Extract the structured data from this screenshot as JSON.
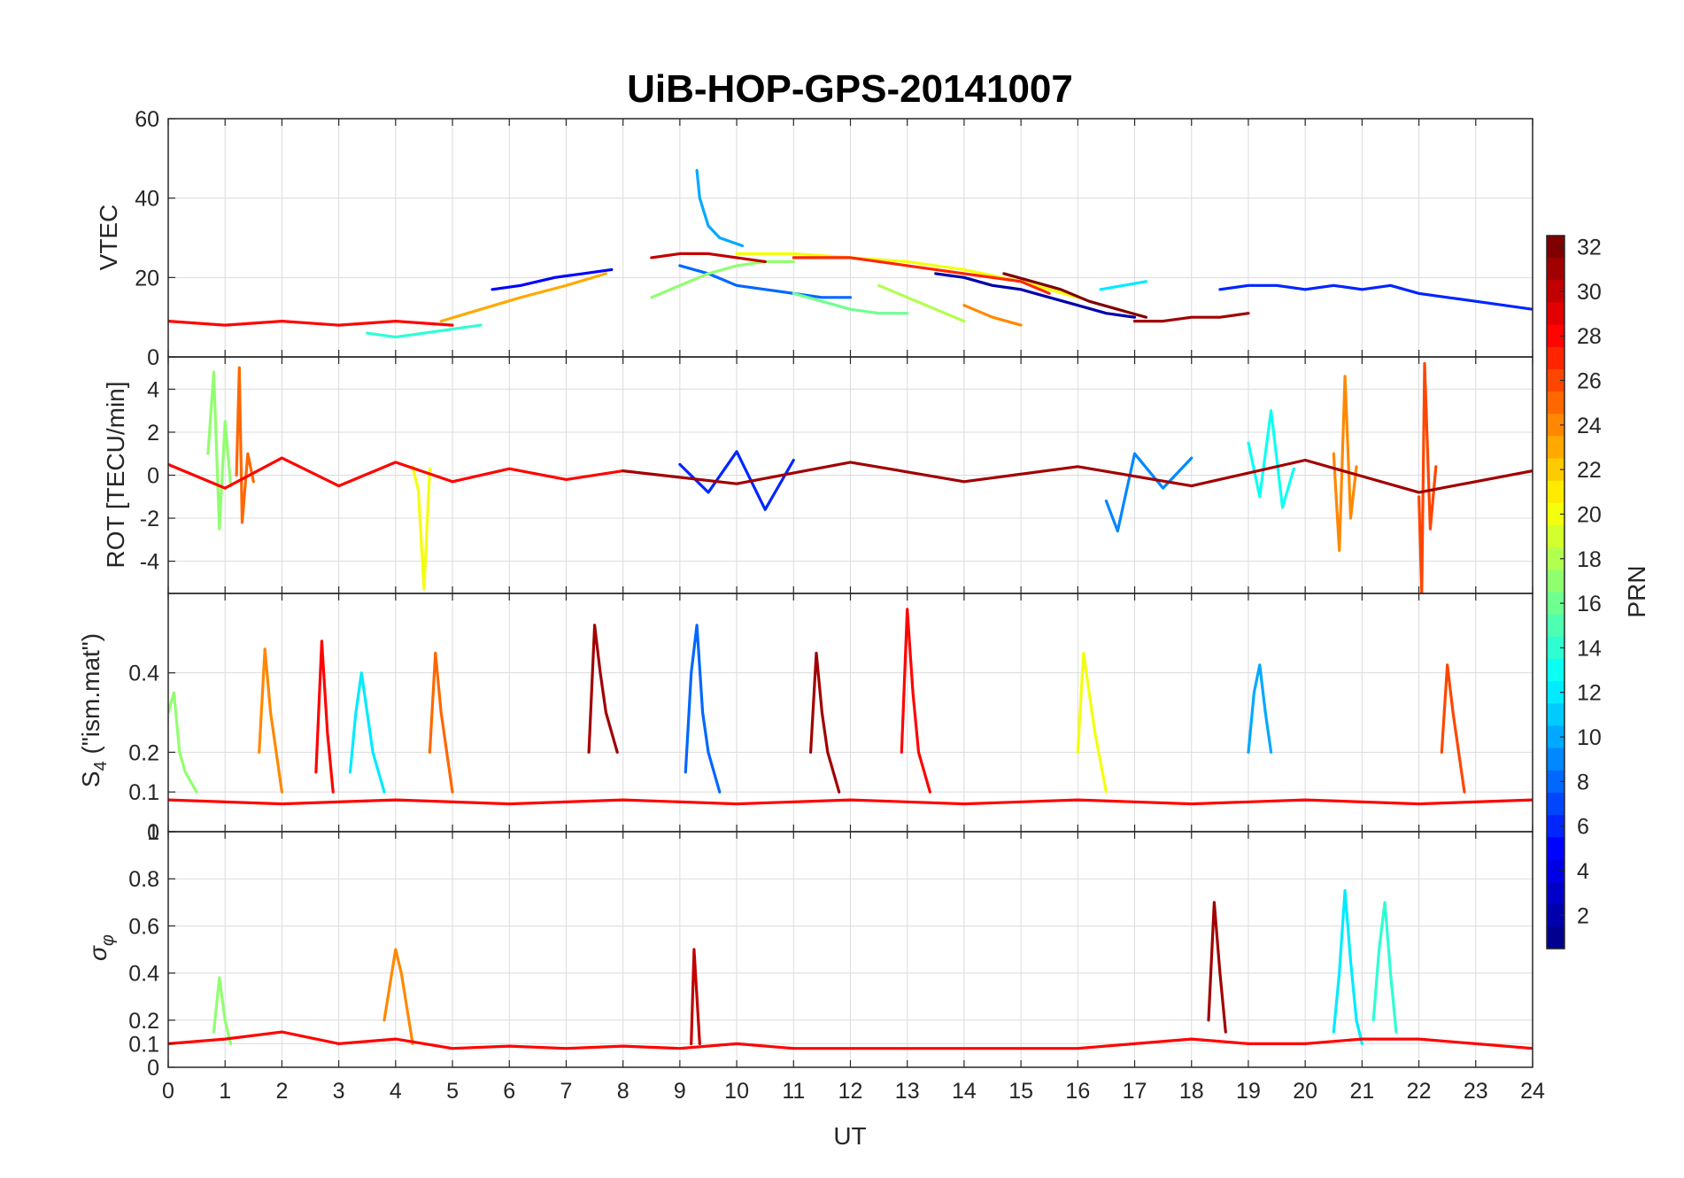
{
  "figure_title": "UiB-HOP-GPS-20141007",
  "colorbar": {
    "label": "PRN",
    "ticks": [
      "2",
      "4",
      "6",
      "8",
      "10",
      "12",
      "14",
      "16",
      "18",
      "20",
      "22",
      "24",
      "26",
      "28",
      "30",
      "32"
    ],
    "range": [
      1,
      32
    ],
    "colormap": [
      "#00008f",
      "#0000ff",
      "#0080ff",
      "#00ffff",
      "#80ff80",
      "#ffff00",
      "#ff8000",
      "#ff0000",
      "#800000"
    ]
  },
  "chart_data": [
    {
      "type": "line",
      "panel": "vtec",
      "ylabel": "VTEC",
      "ylim": [
        0,
        60
      ],
      "yticks": [
        "0",
        "20",
        "40",
        "60"
      ],
      "xlim": [
        0,
        24
      ],
      "grid": true,
      "series": [
        {
          "prn": 2,
          "x": [
            13.5,
            14.0,
            14.5,
            15.0,
            15.5,
            16.0,
            16.5,
            17.0
          ],
          "y": [
            21,
            20,
            18,
            17,
            15,
            13,
            11,
            10
          ]
        },
        {
          "prn": 5,
          "x": [
            5.7,
            6.2,
            6.8,
            7.3,
            7.8
          ],
          "y": [
            17,
            18,
            20,
            21,
            22
          ]
        },
        {
          "prn": 6,
          "x": [
            18.5,
            19.0,
            19.5,
            20.0,
            20.5,
            21.0,
            21.5,
            22.0,
            22.5,
            23.0,
            23.5,
            24.0
          ],
          "y": [
            17,
            18,
            18,
            17,
            18,
            17,
            18,
            16,
            15,
            14,
            13,
            12
          ]
        },
        {
          "prn": 8,
          "x": [
            9.0,
            9.5,
            10.0,
            10.5,
            11.0,
            11.5,
            12.0
          ],
          "y": [
            23,
            21,
            18,
            17,
            16,
            15,
            15
          ]
        },
        {
          "prn": 10,
          "x": [
            9.3,
            9.35,
            9.5,
            9.7,
            9.9,
            10.1
          ],
          "y": [
            47,
            40,
            33,
            30,
            29,
            28
          ]
        },
        {
          "prn": 12,
          "x": [
            16.4,
            16.8,
            17.2
          ],
          "y": [
            17,
            18,
            19
          ]
        },
        {
          "prn": 14,
          "x": [
            3.5,
            4.0,
            4.5,
            5.0,
            5.5
          ],
          "y": [
            6,
            5,
            6,
            7,
            8
          ]
        },
        {
          "prn": 16,
          "x": [
            11.0,
            11.5,
            12.0,
            12.5,
            13.0
          ],
          "y": [
            16,
            14,
            12,
            11,
            11
          ]
        },
        {
          "prn": 17,
          "x": [
            8.5,
            9.0,
            9.5,
            10.0,
            10.5,
            11.0
          ],
          "y": [
            15,
            18,
            21,
            23,
            24,
            24
          ]
        },
        {
          "prn": 18,
          "x": [
            12.5,
            13.0,
            13.5,
            14.0
          ],
          "y": [
            18,
            15,
            12,
            9
          ]
        },
        {
          "prn": 20,
          "x": [
            10.0,
            11.0,
            12.0,
            13.0,
            14.0,
            15.0,
            16.0
          ],
          "y": [
            26,
            26,
            25,
            24,
            22,
            19,
            15
          ]
        },
        {
          "prn": 23,
          "x": [
            4.8,
            5.5,
            6.2,
            7.0,
            7.7
          ],
          "y": [
            9,
            12,
            15,
            18,
            21
          ]
        },
        {
          "prn": 24,
          "x": [
            14.0,
            14.5,
            15.0
          ],
          "y": [
            13,
            10,
            8
          ]
        },
        {
          "prn": 27,
          "x": [
            11.0,
            12.0,
            13.0,
            14.0,
            15.0,
            15.5
          ],
          "y": [
            25,
            25,
            23,
            21,
            19,
            16
          ]
        },
        {
          "prn": 28,
          "x": [
            0.0,
            1.0,
            2.0,
            3.0,
            4.0,
            5.0
          ],
          "y": [
            9,
            8,
            9,
            8,
            9,
            8
          ]
        },
        {
          "prn": 30,
          "x": [
            8.5,
            9.0,
            9.5,
            10.0,
            10.5
          ],
          "y": [
            25,
            26,
            26,
            25,
            24
          ]
        },
        {
          "prn": 31,
          "x": [
            17.0,
            17.5,
            18.0,
            18.5,
            19.0
          ],
          "y": [
            9,
            9,
            10,
            10,
            11
          ]
        },
        {
          "prn": 32,
          "x": [
            14.7,
            15.2,
            15.7,
            16.2,
            16.7,
            17.2
          ],
          "y": [
            21,
            19,
            17,
            14,
            12,
            10
          ]
        }
      ]
    },
    {
      "type": "line",
      "panel": "rot",
      "ylabel": "ROT [TECU/min]",
      "ylim": [
        -5.5,
        5.5
      ],
      "yticks": [
        "-4",
        "-2",
        "0",
        "2",
        "4"
      ],
      "xlim": [
        0,
        24
      ],
      "grid": true,
      "series": [
        {
          "prn": 6,
          "x": [
            9.0,
            9.5,
            10.0,
            10.5,
            11.0
          ],
          "y": [
            0.5,
            -0.8,
            1.1,
            -1.6,
            0.7
          ]
        },
        {
          "prn": 9,
          "x": [
            16.5,
            16.7,
            17.0,
            17.5,
            18.0
          ],
          "y": [
            -1.2,
            -2.6,
            1.0,
            -0.6,
            0.8
          ]
        },
        {
          "prn": 13,
          "x": [
            19.0,
            19.2,
            19.4,
            19.6,
            19.8
          ],
          "y": [
            1.5,
            -1.0,
            3.0,
            -1.5,
            0.3
          ]
        },
        {
          "prn": 17,
          "x": [
            0.7,
            0.8,
            0.9,
            1.0,
            1.1
          ],
          "y": [
            1.0,
            4.8,
            -2.5,
            2.5,
            -0.5
          ]
        },
        {
          "prn": 20,
          "x": [
            4.3,
            4.4,
            4.5,
            4.6
          ],
          "y": [
            0.4,
            -0.7,
            -5.3,
            0.3
          ]
        },
        {
          "prn": 24,
          "x": [
            20.5,
            20.6,
            20.7,
            20.8,
            20.9
          ],
          "y": [
            1.0,
            -3.5,
            4.6,
            -2.0,
            0.4
          ]
        },
        {
          "prn": 25,
          "x": [
            1.2,
            1.25,
            1.3,
            1.4,
            1.5
          ],
          "y": [
            0.0,
            5.0,
            -2.2,
            1.0,
            -0.3
          ]
        },
        {
          "prn": 26,
          "x": [
            22.0,
            22.05,
            22.1,
            22.2,
            22.3
          ],
          "y": [
            -1.0,
            -5.5,
            5.2,
            -2.5,
            0.4
          ]
        },
        {
          "prn": 28,
          "x": [
            0.0,
            1.0,
            2.0,
            3.0,
            4.0,
            5.0,
            6.0,
            7.0,
            8.0
          ],
          "y": [
            0.5,
            -0.6,
            0.8,
            -0.5,
            0.6,
            -0.3,
            0.3,
            -0.2,
            0.2
          ]
        },
        {
          "prn": 31,
          "x": [
            8.0,
            10.0,
            12.0,
            14.0,
            16.0,
            18.0,
            20.0,
            22.0,
            24.0
          ],
          "y": [
            0.2,
            -0.4,
            0.6,
            -0.3,
            0.4,
            -0.5,
            0.7,
            -0.8,
            0.2
          ]
        }
      ]
    },
    {
      "type": "line",
      "panel": "s4",
      "ylabel": "S4 (\"ism.mat\")",
      "ylim": [
        0,
        0.6
      ],
      "yticks": [
        "0",
        "0.1",
        "0.2",
        "0.4"
      ],
      "xlim": [
        0,
        24
      ],
      "grid": true,
      "series": [
        {
          "prn": 8,
          "x": [
            9.1,
            9.2,
            9.3,
            9.4,
            9.5,
            9.7
          ],
          "y": [
            0.15,
            0.4,
            0.52,
            0.3,
            0.2,
            0.1
          ]
        },
        {
          "prn": 10,
          "x": [
            19.0,
            19.1,
            19.2,
            19.3,
            19.4
          ],
          "y": [
            0.2,
            0.35,
            0.42,
            0.3,
            0.2
          ]
        },
        {
          "prn": 12,
          "x": [
            3.2,
            3.3,
            3.4,
            3.5,
            3.6,
            3.8
          ],
          "y": [
            0.15,
            0.3,
            0.4,
            0.3,
            0.2,
            0.1
          ]
        },
        {
          "prn": 17,
          "x": [
            0.0,
            0.1,
            0.2,
            0.3,
            0.5
          ],
          "y": [
            0.3,
            0.35,
            0.2,
            0.15,
            0.1
          ]
        },
        {
          "prn": 20,
          "x": [
            16.0,
            16.1,
            16.2,
            16.3,
            16.5
          ],
          "y": [
            0.2,
            0.45,
            0.35,
            0.25,
            0.1
          ]
        },
        {
          "prn": 24,
          "x": [
            1.6,
            1.7,
            1.8,
            1.9,
            2.0
          ],
          "y": [
            0.2,
            0.46,
            0.3,
            0.2,
            0.1
          ]
        },
        {
          "prn": 25,
          "x": [
            4.6,
            4.7,
            4.8,
            4.9,
            5.0
          ],
          "y": [
            0.2,
            0.45,
            0.3,
            0.2,
            0.1
          ]
        },
        {
          "prn": 26,
          "x": [
            22.4,
            22.5,
            22.6,
            22.7,
            22.8
          ],
          "y": [
            0.2,
            0.42,
            0.3,
            0.2,
            0.1
          ]
        },
        {
          "prn": 28,
          "x": [
            0.0,
            2.0,
            4.0,
            6.0,
            8.0,
            10.0,
            12.0,
            14.0,
            16.0,
            18.0,
            20.0,
            22.0,
            24.0
          ],
          "y": [
            0.08,
            0.07,
            0.08,
            0.07,
            0.08,
            0.07,
            0.08,
            0.07,
            0.08,
            0.07,
            0.08,
            0.07,
            0.08
          ]
        },
        {
          "prn": 28,
          "x": [
            2.6,
            2.7,
            2.8,
            2.9
          ],
          "y": [
            0.15,
            0.48,
            0.25,
            0.1
          ]
        },
        {
          "prn": 28,
          "x": [
            12.9,
            13.0,
            13.1,
            13.2,
            13.4
          ],
          "y": [
            0.2,
            0.56,
            0.35,
            0.2,
            0.1
          ]
        },
        {
          "prn": 31,
          "x": [
            7.4,
            7.5,
            7.6,
            7.7,
            7.9
          ],
          "y": [
            0.2,
            0.52,
            0.4,
            0.3,
            0.2
          ]
        },
        {
          "prn": 31,
          "x": [
            11.3,
            11.4,
            11.5,
            11.6,
            11.8
          ],
          "y": [
            0.2,
            0.45,
            0.3,
            0.2,
            0.1
          ]
        }
      ]
    },
    {
      "type": "line",
      "panel": "sigma_phi",
      "ylabel": "σφ",
      "ylim": [
        0,
        1
      ],
      "yticks": [
        "0",
        "0.1",
        "0.2",
        "0.4",
        "0.6",
        "0.8",
        "1"
      ],
      "xlim": [
        0,
        24
      ],
      "xticks": [
        "0",
        "1",
        "2",
        "3",
        "4",
        "5",
        "6",
        "7",
        "8",
        "9",
        "10",
        "11",
        "12",
        "13",
        "14",
        "15",
        "16",
        "17",
        "18",
        "19",
        "20",
        "21",
        "22",
        "23",
        "24"
      ],
      "xlabel": "UT",
      "grid": true,
      "series": [
        {
          "prn": 12,
          "x": [
            20.5,
            20.6,
            20.7,
            20.8,
            20.9,
            21.0
          ],
          "y": [
            0.15,
            0.4,
            0.75,
            0.45,
            0.2,
            0.1
          ]
        },
        {
          "prn": 14,
          "x": [
            21.2,
            21.3,
            21.4,
            21.5,
            21.6
          ],
          "y": [
            0.2,
            0.5,
            0.7,
            0.4,
            0.15
          ]
        },
        {
          "prn": 17,
          "x": [
            0.8,
            0.9,
            1.0,
            1.1
          ],
          "y": [
            0.15,
            0.38,
            0.2,
            0.1
          ]
        },
        {
          "prn": 24,
          "x": [
            3.8,
            3.9,
            4.0,
            4.1,
            4.2,
            4.3
          ],
          "y": [
            0.2,
            0.35,
            0.5,
            0.4,
            0.25,
            0.1
          ]
        },
        {
          "prn": 28,
          "x": [
            0.0,
            1.0,
            2.0,
            3.0,
            4.0,
            5.0,
            6.0,
            7.0,
            8.0,
            9.0,
            10.0,
            11.0,
            12.0,
            13.0,
            14.0,
            15.0,
            16.0,
            17.0,
            18.0,
            19.0,
            20.0,
            21.0,
            22.0,
            23.0,
            24.0
          ],
          "y": [
            0.1,
            0.12,
            0.15,
            0.1,
            0.12,
            0.08,
            0.09,
            0.08,
            0.09,
            0.08,
            0.1,
            0.08,
            0.08,
            0.08,
            0.08,
            0.08,
            0.08,
            0.1,
            0.12,
            0.1,
            0.1,
            0.12,
            0.12,
            0.1,
            0.08
          ]
        },
        {
          "prn": 30,
          "x": [
            9.2,
            9.25,
            9.3,
            9.35
          ],
          "y": [
            0.1,
            0.5,
            0.3,
            0.1
          ]
        },
        {
          "prn": 31,
          "x": [
            18.3,
            18.4,
            18.5,
            18.6
          ],
          "y": [
            0.2,
            0.7,
            0.4,
            0.15
          ]
        }
      ]
    }
  ]
}
